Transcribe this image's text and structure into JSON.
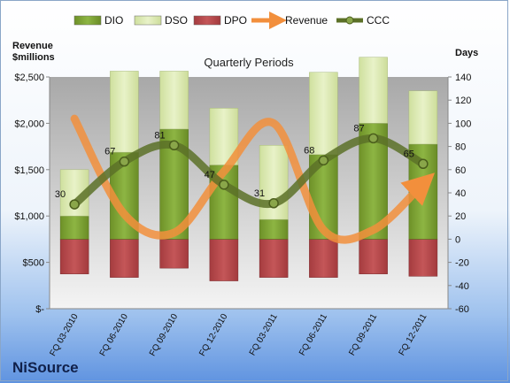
{
  "company": "NiSource",
  "chart_data": {
    "type": "bar",
    "title": "Quarterly Periods",
    "ylabel_left": "Revenue\n$millions",
    "ylabel_right": "Days",
    "categories": [
      "FQ 03-2010",
      "FQ 06-2010",
      "FQ 09-2010",
      "FQ 12-2010",
      "FQ 03-2011",
      "FQ 06-2011",
      "FQ 09-2011",
      "FQ 12-2011"
    ],
    "left_axis": {
      "min": 0,
      "max": 2500,
      "step": 500,
      "tick_labels": [
        "$-",
        "$500",
        "$1,000",
        "$1,500",
        "$2,000",
        "$2,500"
      ]
    },
    "right_axis": {
      "min": -60,
      "max": 140,
      "step": 20
    },
    "series": [
      {
        "name": "DIO",
        "kind": "bar-stack",
        "axis": "right",
        "color": "#7fa336",
        "values": [
          20,
          75,
          95,
          64,
          17,
          73,
          100,
          82
        ]
      },
      {
        "name": "DSO",
        "kind": "bar-stack",
        "axis": "right",
        "color": "#dbeab2",
        "values": [
          40,
          70,
          50,
          49,
          64,
          71,
          57,
          46
        ]
      },
      {
        "name": "DPO",
        "kind": "bar-negative",
        "axis": "right",
        "color": "#b8474a",
        "values": [
          -30,
          -33,
          -25,
          -36,
          -33,
          -33,
          -30,
          -32
        ]
      },
      {
        "name": "Revenue",
        "kind": "line",
        "axis": "left",
        "color": "#f28f3c",
        "values": [
          2050,
          1020,
          820,
          1480,
          2000,
          850,
          850,
          1350
        ]
      },
      {
        "name": "CCC",
        "kind": "line",
        "axis": "right",
        "color": "#5c7128",
        "values": [
          30,
          67,
          81,
          47,
          31,
          68,
          87,
          65
        ]
      }
    ],
    "data_labels": [
      "30",
      "67",
      "81",
      "47",
      "31",
      "68",
      "87",
      "65"
    ],
    "legend_position": "top",
    "grid": false
  }
}
